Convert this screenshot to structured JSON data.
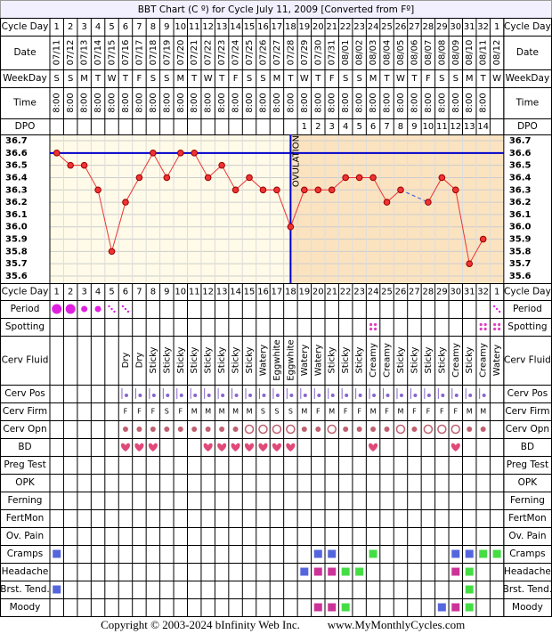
{
  "header": {
    "title": "BBT Chart (C º) for Cycle July 11, 2009  [Converted from Fº]"
  },
  "rows": [
    "Cycle Day",
    "Date",
    "WeekDay",
    "Time",
    "DPO",
    "Cycle Day",
    "Period",
    "Spotting",
    "Cerv Fluid",
    "Cerv Pos",
    "Cerv Firm",
    "Cerv Opn",
    "BD",
    "Preg Test",
    "OPK",
    "Ferning",
    "FertMon",
    "Ov. Pain",
    "Cramps",
    "Headache",
    "Brst. Tend.",
    "Moody"
  ],
  "days": {
    "cycle_day": [
      1,
      2,
      3,
      4,
      5,
      6,
      7,
      8,
      9,
      10,
      11,
      12,
      13,
      14,
      15,
      16,
      17,
      18,
      19,
      20,
      21,
      22,
      23,
      24,
      25,
      26,
      27,
      28,
      29,
      30,
      31,
      32,
      1
    ],
    "date": [
      "07/11",
      "07/12",
      "07/13",
      "07/14",
      "07/15",
      "07/16",
      "07/17",
      "07/18",
      "07/19",
      "07/20",
      "07/21",
      "07/22",
      "07/23",
      "07/24",
      "07/25",
      "07/26",
      "07/27",
      "07/28",
      "07/29",
      "07/30",
      "07/31",
      "08/01",
      "08/02",
      "08/03",
      "08/04",
      "08/05",
      "08/06",
      "08/07",
      "08/08",
      "08/09",
      "08/10",
      "08/11",
      "08/12"
    ],
    "weekday": [
      "S",
      "S",
      "M",
      "T",
      "W",
      "T",
      "F",
      "S",
      "S",
      "M",
      "T",
      "W",
      "T",
      "F",
      "S",
      "S",
      "M",
      "T",
      "W",
      "T",
      "F",
      "S",
      "S",
      "M",
      "T",
      "W",
      "T",
      "F",
      "S",
      "S",
      "M",
      "T",
      "W"
    ],
    "time": [
      "8:00",
      "8:00",
      "8:00",
      "8:00",
      "8:00",
      "8:00",
      "8:00",
      "8:00",
      "8:00",
      "8:00",
      "8:00",
      "8:00",
      "8:00",
      "8:00",
      "8:00",
      "8:00",
      "8:00",
      "8:00",
      "8:00",
      "8:00",
      "8:00",
      "8:00",
      "8:00",
      "8:00",
      "8:00",
      "8:00",
      "8:00",
      "8:00",
      "8:00",
      "8:00",
      "8:00",
      "8:00",
      null
    ],
    "dpo": [
      null,
      null,
      null,
      null,
      null,
      null,
      null,
      null,
      null,
      null,
      null,
      null,
      null,
      null,
      null,
      null,
      null,
      null,
      1,
      2,
      3,
      4,
      5,
      6,
      7,
      8,
      9,
      10,
      11,
      12,
      13,
      14,
      null
    ],
    "cerv_fluid": [
      null,
      null,
      null,
      null,
      null,
      "Dry",
      "Dry",
      "Sticky",
      "Sticky",
      "Sticky",
      "Sticky",
      "Sticky",
      "Sticky",
      "Sticky",
      "Sticky",
      "Watery",
      "Eggwhite",
      "Eggwhite",
      "Watery",
      "Watery",
      "Sticky",
      "Sticky",
      "Sticky",
      "Creamy",
      "Creamy",
      "Sticky",
      "Sticky",
      "Sticky",
      "Sticky",
      "Creamy",
      "Sticky",
      "Creamy",
      "Watery"
    ],
    "cerv_firm": [
      null,
      null,
      null,
      null,
      null,
      "F",
      "F",
      "F",
      "S",
      "F",
      "M",
      "M",
      "M",
      "M",
      "M",
      "S",
      "S",
      "S",
      "M",
      "F",
      "M",
      "F",
      "F",
      "M",
      "F",
      "M",
      "F",
      "F",
      "F",
      "F",
      "M",
      "M",
      null
    ]
  },
  "chart_data": {
    "type": "line",
    "categories": [
      1,
      2,
      3,
      4,
      5,
      6,
      7,
      8,
      9,
      10,
      11,
      12,
      13,
      14,
      15,
      16,
      17,
      18,
      19,
      20,
      21,
      22,
      23,
      24,
      25,
      26,
      27,
      28,
      29,
      30,
      31,
      32,
      1
    ],
    "values": [
      36.6,
      36.5,
      36.5,
      36.3,
      35.8,
      36.2,
      36.4,
      36.6,
      36.4,
      36.6,
      36.6,
      36.4,
      36.5,
      36.3,
      36.4,
      36.3,
      36.3,
      36.0,
      36.3,
      36.3,
      36.3,
      36.4,
      36.4,
      36.4,
      36.2,
      36.3,
      null,
      36.2,
      36.4,
      36.3,
      35.7,
      35.9,
      null
    ],
    "color": "#ee3333",
    "ylim": [
      35.6,
      36.7
    ],
    "yticks": [
      36.7,
      36.6,
      36.5,
      36.4,
      36.3,
      36.2,
      36.1,
      {
        "value": 36,
        "label": "36.0"
      },
      35.9,
      35.8,
      35.7,
      35.6
    ],
    "coverline": 36.6,
    "coverline_color": "#0000cc",
    "ovulation_day": 18,
    "ovulation_label": "OVULATION",
    "postovulation_color": "#fbe3c0",
    "background_color": "#fffbe8"
  },
  "period": {
    "heavy": [
      1,
      2
    ],
    "light": [
      3,
      4
    ],
    "spotting": [
      5,
      6,
      33
    ]
  },
  "spotting": [
    24,
    32,
    33
  ],
  "cerv_pos": [
    6,
    7,
    8,
    9,
    10,
    11,
    12,
    13,
    14,
    15,
    16,
    17,
    18,
    19,
    20,
    21,
    22,
    23,
    24,
    25,
    26,
    27,
    28,
    29,
    30,
    31,
    32
  ],
  "cerv_opn": {
    "closed": [
      6,
      7,
      8,
      9,
      10,
      11,
      12,
      13,
      14,
      19,
      20,
      22,
      23,
      24,
      25,
      27,
      31,
      32
    ],
    "open": [
      15,
      16,
      17,
      18,
      21,
      26,
      28,
      29,
      30
    ]
  },
  "bd": [
    6,
    7,
    8,
    12,
    13,
    14,
    15,
    16,
    17,
    18,
    24,
    30
  ],
  "symptoms": [
    {
      "days": [
        1,
        20,
        21,
        24,
        30,
        31,
        32,
        33
      ],
      "colors": [
        "#5566dd",
        "#5566dd",
        "#5566dd",
        "#44dd44",
        "#5566dd",
        "#5566dd",
        "#44dd44",
        "#44dd44"
      ]
    },
    {
      "days": [
        19,
        20,
        21,
        22,
        23,
        30,
        31
      ],
      "colors": [
        "#5566dd",
        "#cc3399",
        "#cc3399",
        "#44dd44",
        "#44dd44",
        "#cc3399",
        "#44dd44"
      ]
    },
    {
      "days": [
        1,
        31
      ],
      "colors": [
        "#5566dd",
        "#44dd44"
      ]
    },
    {
      "days": [
        20,
        21,
        22,
        29,
        30,
        31
      ],
      "colors": [
        "#cc3399",
        "#cc3399",
        "#44dd44",
        "#5566dd",
        "#cc3399",
        "#44dd44"
      ]
    }
  ],
  "footer": {
    "copyright": "Copyright © 2003-2024 bInfinity Web Inc.",
    "site": "www.MyMonthlyCycles.com"
  }
}
